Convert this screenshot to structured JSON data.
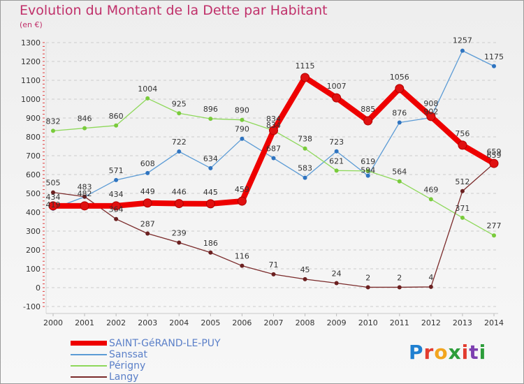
{
  "header": {
    "title": "Evolution du Montant de la Dette par Habitant",
    "subtitle": "(en €)"
  },
  "colors": {
    "title": "#c0306a",
    "axis_text": "#333333",
    "grid": "#cccccc"
  },
  "logo": {
    "text": "Proxiti",
    "colors": [
      "#1f7fd0",
      "#e23b2e",
      "#f2a51f",
      "#2c9d3a",
      "#e23b2e",
      "#7d3fb0",
      "#2c9d3a"
    ]
  },
  "chart_data": {
    "type": "line",
    "title": "Evolution du Montant de la Dette par Habitant",
    "subtitle": "(en €)",
    "xlabel": "",
    "ylabel": "",
    "ylim": [
      -100,
      1300
    ],
    "yticks": [
      -100,
      0,
      100,
      200,
      300,
      400,
      500,
      600,
      700,
      800,
      900,
      1000,
      1100,
      1200,
      1300
    ],
    "grid": "horizontal dashed",
    "legend_position": "bottom-left",
    "x": [
      "2000",
      "2001",
      "2002",
      "2003",
      "2004",
      "2005",
      "2006",
      "2007",
      "2008",
      "2009",
      "2010",
      "2011",
      "2012",
      "2013",
      "2014"
    ],
    "series": [
      {
        "name": "Sanssat",
        "color": "#5b9bd5",
        "dot": "#2f74c0",
        "values": [
          419,
          482,
          571,
          608,
          722,
          634,
          790,
          687,
          583,
          723,
          594,
          876,
          902,
          1257,
          1175
        ]
      },
      {
        "name": "Périgny",
        "color": "#8ed85a",
        "dot": "#79cb3b",
        "values": [
          832,
          846,
          860,
          1004,
          925,
          896,
          890,
          834,
          738,
          621,
          619,
          564,
          469,
          371,
          277
        ]
      },
      {
        "name": "Langy",
        "color": "#7a2a2a",
        "dot": "#6b2020",
        "values": [
          505,
          483,
          364,
          287,
          239,
          186,
          116,
          71,
          45,
          24,
          2,
          2,
          4,
          512,
          659
        ]
      },
      {
        "name": "SAINT-GéRAND-LE-PUY",
        "color": "#ee0000",
        "dot": "#e01010",
        "values": [
          434,
          434,
          434,
          449,
          446,
          445,
          459,
          834,
          1115,
          1007,
          885,
          1056,
          908,
          756,
          659
        ]
      }
    ],
    "labels": [
      {
        "text": "1257",
        "xi": 13,
        "y": 1257,
        "dy": -11
      },
      {
        "text": "1175",
        "xi": 14,
        "y": 1175,
        "dy": -10
      },
      {
        "text": "1115",
        "xi": 8,
        "y": 1115,
        "dy": -13
      },
      {
        "text": "1056",
        "xi": 11,
        "y": 1056,
        "dy": -13
      },
      {
        "text": "1007",
        "xi": 9,
        "y": 1007,
        "dy": -13
      },
      {
        "text": "1004",
        "xi": 3,
        "y": 1004,
        "dy": -10
      },
      {
        "text": "925",
        "xi": 4,
        "y": 925,
        "dy": -10
      },
      {
        "text": "908",
        "xi": 12,
        "y": 908,
        "dy": -15
      },
      {
        "text": "902",
        "xi": 12,
        "y": 902,
        "dy": -5
      },
      {
        "text": "896",
        "xi": 5,
        "y": 896,
        "dy": -10
      },
      {
        "text": "890",
        "xi": 6,
        "y": 890,
        "dy": -10
      },
      {
        "text": "885",
        "xi": 10,
        "y": 885,
        "dy": -13
      },
      {
        "text": "876",
        "xi": 11,
        "y": 876,
        "dy": -10
      },
      {
        "text": "860",
        "xi": 2,
        "y": 860,
        "dy": -10
      },
      {
        "text": "846",
        "xi": 1,
        "y": 846,
        "dy": -10
      },
      {
        "text": "834",
        "xi": 7,
        "y": 834,
        "dy": -13
      },
      {
        "text": "834",
        "xi": 7,
        "y": 834,
        "dy": -4
      },
      {
        "text": "832",
        "xi": 0,
        "y": 832,
        "dy": -10
      },
      {
        "text": "790",
        "xi": 6,
        "y": 790,
        "dy": -10
      },
      {
        "text": "756",
        "xi": 13,
        "y": 756,
        "dy": -13
      },
      {
        "text": "738",
        "xi": 8,
        "y": 738,
        "dy": -10
      },
      {
        "text": "723",
        "xi": 9,
        "y": 723,
        "dy": -10
      },
      {
        "text": "722",
        "xi": 4,
        "y": 722,
        "dy": -10
      },
      {
        "text": "687",
        "xi": 7,
        "y": 687,
        "dy": -10
      },
      {
        "text": "659",
        "xi": 14,
        "y": 659,
        "dy": -13
      },
      {
        "text": "659",
        "xi": 14,
        "y": 659,
        "dy": -8
      },
      {
        "text": "634",
        "xi": 5,
        "y": 634,
        "dy": -10
      },
      {
        "text": "621",
        "xi": 9,
        "y": 621,
        "dy": -10
      },
      {
        "text": "619",
        "xi": 10,
        "y": 619,
        "dy": -10
      },
      {
        "text": "608",
        "xi": 3,
        "y": 608,
        "dy": -10
      },
      {
        "text": "594",
        "xi": 10,
        "y": 594,
        "dy": -4
      },
      {
        "text": "583",
        "xi": 8,
        "y": 583,
        "dy": -10
      },
      {
        "text": "571",
        "xi": 2,
        "y": 571,
        "dy": -10
      },
      {
        "text": "564",
        "xi": 11,
        "y": 564,
        "dy": -10
      },
      {
        "text": "512",
        "xi": 13,
        "y": 512,
        "dy": -10
      },
      {
        "text": "505",
        "xi": 0,
        "y": 505,
        "dy": -10
      },
      {
        "text": "483",
        "xi": 1,
        "y": 483,
        "dy": -10
      },
      {
        "text": "482",
        "xi": 1,
        "y": 482,
        "dy": -1
      },
      {
        "text": "469",
        "xi": 12,
        "y": 469,
        "dy": -10
      },
      {
        "text": "459",
        "xi": 6,
        "y": 459,
        "dy": -13
      },
      {
        "text": "449",
        "xi": 3,
        "y": 449,
        "dy": -13
      },
      {
        "text": "446",
        "xi": 4,
        "y": 446,
        "dy": -13
      },
      {
        "text": "445",
        "xi": 5,
        "y": 445,
        "dy": -13
      },
      {
        "text": "434",
        "xi": 0,
        "y": 434,
        "dy": -9
      },
      {
        "text": "434",
        "xi": 2,
        "y": 434,
        "dy": -13
      },
      {
        "text": "419",
        "xi": 0,
        "y": 419,
        "dy": -2
      },
      {
        "text": "371",
        "xi": 13,
        "y": 371,
        "dy": -10
      },
      {
        "text": "364",
        "xi": 2,
        "y": 364,
        "dy": -10
      },
      {
        "text": "287",
        "xi": 3,
        "y": 287,
        "dy": -10
      },
      {
        "text": "277",
        "xi": 14,
        "y": 277,
        "dy": -10
      },
      {
        "text": "239",
        "xi": 4,
        "y": 239,
        "dy": -10
      },
      {
        "text": "186",
        "xi": 5,
        "y": 186,
        "dy": -10
      },
      {
        "text": "116",
        "xi": 6,
        "y": 116,
        "dy": -10
      },
      {
        "text": "71",
        "xi": 7,
        "y": 71,
        "dy": -10
      },
      {
        "text": "45",
        "xi": 8,
        "y": 45,
        "dy": -10
      },
      {
        "text": "24",
        "xi": 9,
        "y": 24,
        "dy": -10
      },
      {
        "text": "2",
        "xi": 10,
        "y": 2,
        "dy": -10
      },
      {
        "text": "2",
        "xi": 11,
        "y": 2,
        "dy": -10
      },
      {
        "text": "4",
        "xi": 12,
        "y": 4,
        "dy": -10
      }
    ]
  },
  "legend": {
    "items": [
      {
        "label": "SAINT-GéRAND-LE-PUY",
        "color": "#ee0000",
        "text_color": "#5a7fc8"
      },
      {
        "label": "Sanssat",
        "color": "#5b9bd5",
        "text_color": "#5a7fc8"
      },
      {
        "label": "Périgny",
        "color": "#8ed85a",
        "text_color": "#5a7fc8"
      },
      {
        "label": "Langy",
        "color": "#7a2a2a",
        "text_color": "#5a7fc8"
      }
    ]
  }
}
